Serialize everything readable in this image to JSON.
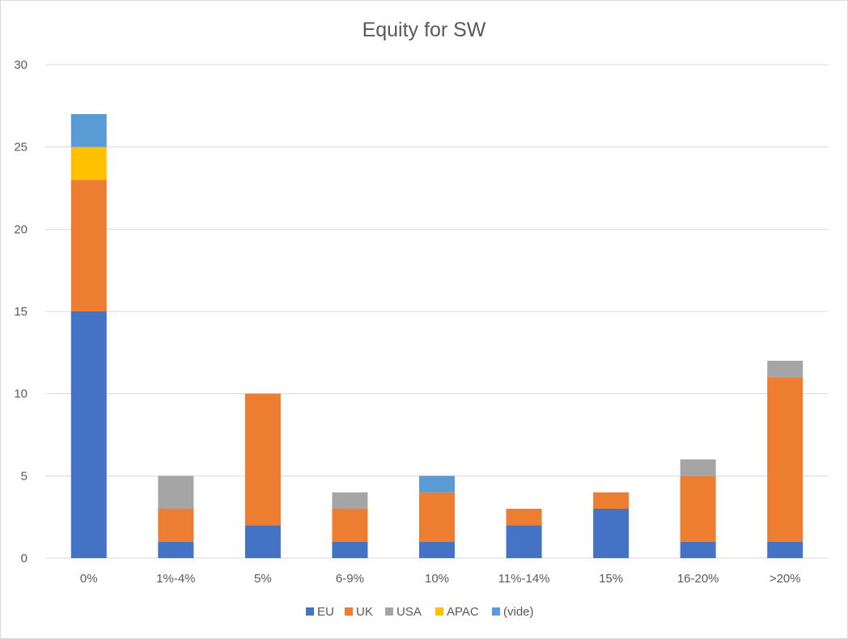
{
  "chart_data": {
    "type": "bar",
    "stacked": true,
    "title": "Equity for SW",
    "xlabel": "",
    "ylabel": "",
    "ylim": [
      0,
      30
    ],
    "yticks": [
      0,
      5,
      10,
      15,
      20,
      25,
      30
    ],
    "grid": true,
    "legend_position": "bottom",
    "categories": [
      "0%",
      "1%-4%",
      "5%",
      "6-9%",
      "10%",
      "11%-14%",
      "15%",
      "16-20%",
      ">20%"
    ],
    "series": [
      {
        "name": "EU",
        "color": "#4472c4",
        "values": [
          15,
          1,
          2,
          1,
          1,
          2,
          3,
          1,
          1
        ]
      },
      {
        "name": "UK",
        "color": "#ed7d31",
        "values": [
          8,
          2,
          8,
          2,
          3,
          1,
          1,
          4,
          10
        ]
      },
      {
        "name": "USA",
        "color": "#a5a5a5",
        "values": [
          0,
          2,
          0,
          1,
          0,
          0,
          0,
          1,
          1
        ]
      },
      {
        "name": "APAC",
        "color": "#ffc000",
        "values": [
          2,
          0,
          0,
          0,
          0,
          0,
          0,
          0,
          0
        ]
      },
      {
        "name": "(vide)",
        "color": "#5b9bd5",
        "values": [
          2,
          0,
          0,
          0,
          1,
          0,
          0,
          0,
          0
        ]
      }
    ]
  }
}
